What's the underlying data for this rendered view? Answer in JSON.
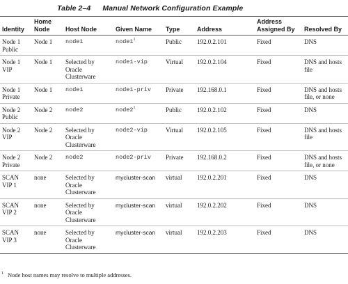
{
  "caption": {
    "number": "Table 2–4",
    "title": "Manual Network Configuration Example"
  },
  "headers": {
    "identity": "Identity",
    "home_node": "Home Node",
    "host_node": "Host Node",
    "given_name": "Given Name",
    "type": "Type",
    "address": "Address",
    "assigned_by": "Address Assigned By",
    "resolved_by": "Resolved By"
  },
  "rows": [
    {
      "identity": "Node 1 Public",
      "home_node": "Node 1",
      "host_node": "node1",
      "given_name": "node1",
      "given_sup": "1",
      "type": "Public",
      "address": "192.0.2.101",
      "assigned_by": "Fixed",
      "resolved_by": "DNS"
    },
    {
      "identity": "Node 1 VIP",
      "home_node": "Node 1",
      "host_node": "Selected by Oracle Clusterware",
      "given_name": "node1-vip",
      "given_sup": "",
      "type": "Virtual",
      "address": "192.0.2.104",
      "assigned_by": "Fixed",
      "resolved_by": "DNS and hosts file"
    },
    {
      "identity": "Node 1 Private",
      "home_node": "Node 1",
      "host_node": "node1",
      "given_name": "node1-priv",
      "given_sup": "",
      "type": "Private",
      "address": "192.168.0.1",
      "assigned_by": "Fixed",
      "resolved_by": "DNS and hosts file, or none"
    },
    {
      "identity": "Node 2 Public",
      "home_node": "Node 2",
      "host_node": "node2",
      "given_name": "node2",
      "given_sup": "1",
      "type": "Public",
      "address": "192.0.2.102",
      "assigned_by": "Fixed",
      "resolved_by": "DNS"
    },
    {
      "identity": "Node 2 VIP",
      "home_node": "Node 2",
      "host_node": "Selected by Oracle Clusterware",
      "given_name": "node2-vip",
      "given_sup": "",
      "type": "Virtual",
      "address": "192.0.2.105",
      "assigned_by": "Fixed",
      "resolved_by": "DNS and hosts file"
    },
    {
      "identity": "Node 2 Private",
      "home_node": "Node 2",
      "host_node": "node2",
      "given_name": "node2-priv",
      "given_sup": "",
      "type": "Private",
      "address": "192.168.0.2",
      "assigned_by": "Fixed",
      "resolved_by": "DNS and hosts file, or none"
    },
    {
      "identity": "SCAN VIP 1",
      "home_node": "none",
      "host_node": "Selected by Oracle Clusterware",
      "given_name": "mycluster-scan",
      "given_sup": "",
      "type": "virtual",
      "address": "192.0.2.201",
      "assigned_by": "Fixed",
      "resolved_by": "DNS"
    },
    {
      "identity": "SCAN VIP 2",
      "home_node": "none",
      "host_node": "Selected by Oracle Clusterware",
      "given_name": "mycluster-scan",
      "given_sup": "",
      "type": "virtual",
      "address": "192.0.2.202",
      "assigned_by": "Fixed",
      "resolved_by": "DNS"
    },
    {
      "identity": "SCAN VIP 3",
      "home_node": "none",
      "host_node": "Selected by Oracle Clusterware",
      "given_name": "mycluster-scan",
      "given_sup": "",
      "type": "virtual",
      "address": "192.0.2.203",
      "assigned_by": "Fixed",
      "resolved_by": "DNS"
    }
  ],
  "footnote": {
    "marker": "1",
    "text": "Node host names may resolve to multiple addresses."
  }
}
